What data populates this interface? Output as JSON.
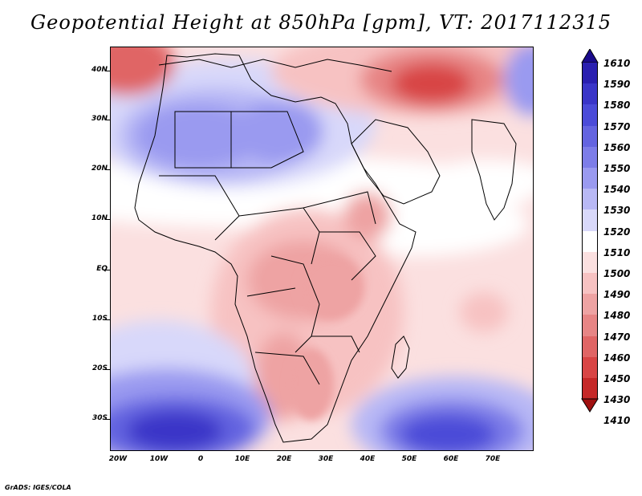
{
  "title": "Geopotential Height at 850hPa [gpm], VT: 2017112315",
  "footer": "GrADS: IGES/COLA",
  "y_axis": {
    "labels": [
      "40N",
      "30N",
      "20N",
      "10N",
      "EQ",
      "10S",
      "20S",
      "30S"
    ]
  },
  "x_axis": {
    "labels": [
      "20W",
      "10W",
      "0",
      "10E",
      "20E",
      "30E",
      "40E",
      "50E",
      "60E",
      "70E"
    ]
  },
  "colorbar": {
    "labels": [
      "1610",
      "1590",
      "1580",
      "1570",
      "1560",
      "1550",
      "1540",
      "1530",
      "1520",
      "1510",
      "1500",
      "1490",
      "1480",
      "1470",
      "1460",
      "1450",
      "1430",
      "1410"
    ],
    "colors": [
      "#1a0a8c",
      "#2a1fb0",
      "#3a35c8",
      "#4b4bd8",
      "#6464e0",
      "#7d7de8",
      "#9a9af0",
      "#b8b8f5",
      "#d8d8fa",
      "#ffffff",
      "#fbe0e0",
      "#f7c2c2",
      "#eea3a3",
      "#e78585",
      "#e06565",
      "#d84545",
      "#c52828",
      "#a01010"
    ]
  },
  "map_data": {
    "field": "geopotential height",
    "level": "850hPa",
    "units": "gpm",
    "valid_time": "2017112315",
    "lon_range": [
      "20W",
      "80E"
    ],
    "lat_range": [
      "35S",
      "45N"
    ]
  }
}
